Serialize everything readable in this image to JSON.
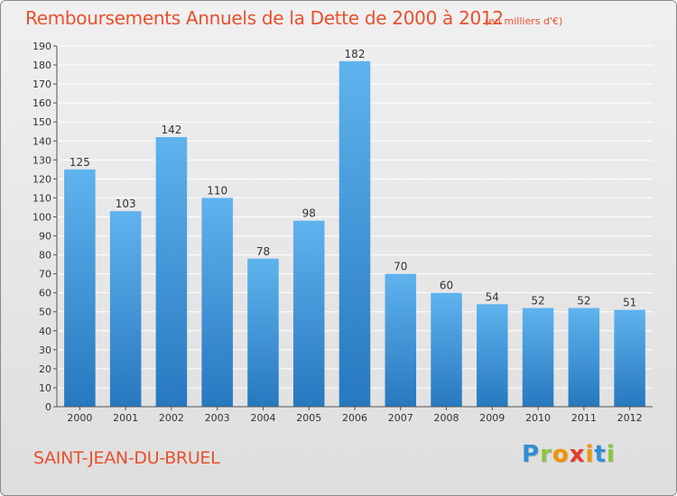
{
  "header": {
    "title": "Remboursements Annuels de la Dette de 2000 à 2012",
    "unit": "(en milliers d'€)"
  },
  "footer": {
    "city": "SAINT-JEAN-DU-BRUEL",
    "logo_letters": [
      "P",
      "r",
      "o",
      "x",
      "i",
      "t",
      "i"
    ],
    "logo_colors": [
      "#2f8fd5",
      "#8cc63f",
      "#f39200",
      "#e8392c",
      "#f39200",
      "#2f8fd5",
      "#8cc63f"
    ]
  },
  "chart_data": {
    "type": "bar",
    "title": "Remboursements Annuels de la Dette de 2000 à 2012",
    "subtitle": "(en milliers d'€)",
    "xlabel": "",
    "ylabel": "",
    "categories": [
      "2000",
      "2001",
      "2002",
      "2003",
      "2004",
      "2005",
      "2006",
      "2007",
      "2008",
      "2009",
      "2010",
      "2011",
      "2012"
    ],
    "values": [
      125,
      103,
      142,
      110,
      78,
      98,
      182,
      70,
      60,
      54,
      52,
      52,
      51
    ],
    "ylim": [
      0,
      190
    ],
    "yticks": [
      0,
      10,
      20,
      30,
      40,
      50,
      60,
      70,
      80,
      90,
      100,
      110,
      120,
      130,
      140,
      150,
      160,
      170,
      180,
      190
    ],
    "grid": true,
    "colors": {
      "bar_top": "#5fb3ee",
      "bar_bottom": "#2778bf",
      "text": "#333333",
      "grid": "#ffffff"
    }
  }
}
